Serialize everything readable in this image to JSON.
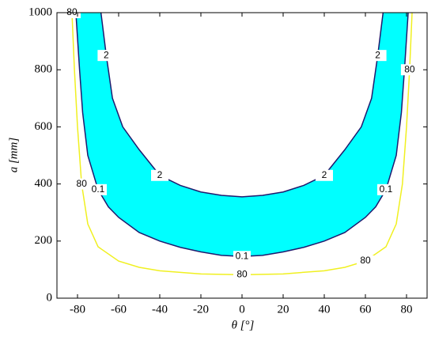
{
  "chart_data": {
    "type": "contour",
    "xlabel": "θ [°]",
    "ylabel": "a [mm]",
    "xlim": [
      -90,
      90
    ],
    "ylim": [
      0,
      1000
    ],
    "xticks": [
      -80,
      -60,
      -40,
      -20,
      0,
      20,
      40,
      60,
      80
    ],
    "yticks": [
      0,
      200,
      400,
      600,
      800,
      1000
    ],
    "band_color": "#00ffff",
    "series": [
      {
        "name": "0.1",
        "color": "#1f1a6e",
        "x": [
          -80.8,
          -79,
          -77.5,
          -75,
          -70,
          -65,
          -60,
          -50,
          -40,
          -30,
          -20,
          -10,
          0,
          10,
          20,
          30,
          40,
          50,
          60,
          65,
          70,
          75,
          77.5,
          79,
          80.8
        ],
        "values": [
          1000,
          800,
          650,
          500,
          380,
          320,
          283,
          230,
          200,
          178,
          162,
          150,
          146,
          150,
          162,
          178,
          200,
          230,
          283,
          320,
          380,
          500,
          650,
          800,
          1000
        ]
      },
      {
        "name": "2",
        "color": "#1f1a6e",
        "x": [
          -68.6,
          -66,
          -63,
          -58,
          -50,
          -40,
          -30,
          -20,
          -10,
          0,
          10,
          20,
          30,
          40,
          50,
          58,
          63,
          66,
          68.6
        ],
        "values": [
          1000,
          850,
          700,
          600,
          520,
          430,
          395,
          372,
          360,
          355,
          360,
          372,
          395,
          430,
          520,
          600,
          700,
          850,
          1000
        ]
      },
      {
        "name": "80",
        "color": "#f0f020",
        "x": [
          -82.7,
          -81.5,
          -80,
          -78,
          -75,
          -70,
          -60,
          -50,
          -40,
          -20,
          0,
          20,
          40,
          50,
          60,
          70,
          75,
          78,
          80,
          81.5,
          82.7
        ],
        "values": [
          1000,
          800,
          600,
          400,
          260,
          180,
          130,
          108,
          96,
          85,
          82,
          85,
          96,
          108,
          130,
          180,
          260,
          400,
          600,
          800,
          1000
        ]
      }
    ]
  }
}
